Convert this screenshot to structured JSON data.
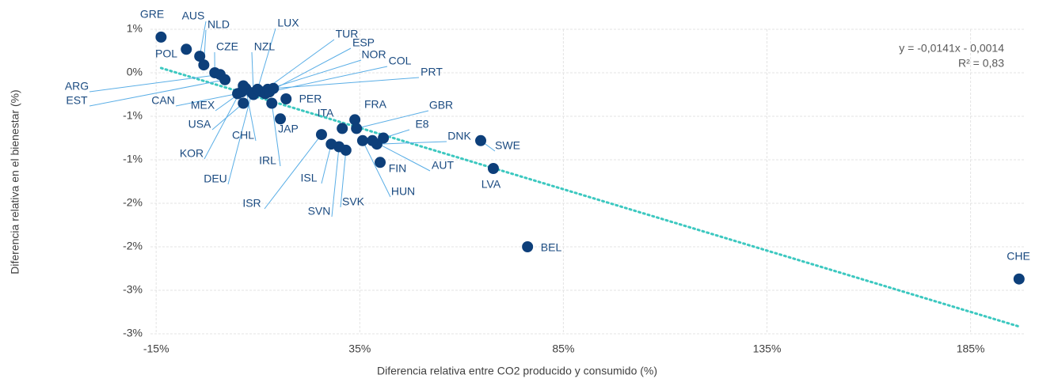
{
  "chart_data": {
    "type": "scatter",
    "x_label": "Diferencia relativa entre CO2 producido y consumido (%)",
    "y_label": "Diferencia relativa en el bienestar (%)",
    "color": "#0d3f7a",
    "point_labels": [
      "GRE",
      "POL",
      "AUS",
      "NLD",
      "CZE",
      "ARG",
      "EST",
      "CAN",
      "MEX",
      "USA",
      "CHL",
      "KOR",
      "DEU",
      "IRL",
      "JAP",
      "PER",
      "NZL",
      "LUX",
      "TUR",
      "ESP",
      "NOR",
      "COL",
      "PRT",
      "ITA",
      "FRA",
      "GBR",
      "E8",
      "DNK",
      "SWE",
      "LVA",
      "AUT",
      "FIN",
      "HUN",
      "SVK",
      "SVN",
      "ISL",
      "ISR",
      "BEL",
      "CHE"
    ],
    "x": [
      -13.8,
      -7.6,
      -4.3,
      -3.3,
      -0.6,
      0.7,
      1.9,
      5.0,
      6.0,
      6.4,
      7.0,
      6.4,
      8.5,
      13.4,
      15.5,
      16.9,
      8.9,
      9.9,
      11.0,
      11.8,
      12.4,
      12.8,
      13.8,
      30.7,
      33.8,
      34.2,
      40.8,
      39.2,
      64.7,
      67.8,
      38.1,
      40.0,
      35.7,
      31.6,
      29.9,
      28.0,
      25.6,
      76.2,
      196.9
    ],
    "y": [
      0.41,
      0.27,
      0.19,
      0.09,
      0.0,
      -0.02,
      -0.08,
      -0.24,
      -0.22,
      -0.35,
      -0.18,
      -0.15,
      -0.23,
      -0.35,
      -0.53,
      -0.3,
      -0.25,
      -0.19,
      -0.22,
      -0.24,
      -0.19,
      -0.22,
      -0.18,
      -0.64,
      -0.54,
      -0.64,
      -0.75,
      -0.82,
      -0.78,
      -1.1,
      -0.78,
      -1.03,
      -0.78,
      -0.89,
      -0.85,
      -0.82,
      -0.71,
      -2.0,
      -2.37
    ],
    "xlim": [
      -16.4,
      198.3
    ],
    "xticks": [
      {
        "value": -15,
        "label": "-15%"
      },
      {
        "value": 35,
        "label": "35%"
      },
      {
        "value": 85,
        "label": "85%"
      },
      {
        "value": 135,
        "label": "135%"
      },
      {
        "value": 185,
        "label": "185%"
      }
    ],
    "ylim": [
      -3,
      0.5
    ],
    "yticks": [
      {
        "value": 0.5,
        "label": "1%"
      },
      {
        "value": 0,
        "label": "0%"
      },
      {
        "value": -0.5,
        "label": "-1%"
      },
      {
        "value": -1,
        "label": "-1%"
      },
      {
        "value": -1.5,
        "label": "-2%"
      },
      {
        "value": -2,
        "label": "-2%"
      },
      {
        "value": -2.5,
        "label": "-3%"
      },
      {
        "value": -3,
        "label": "-3%"
      }
    ],
    "grid": true,
    "trendline": {
      "equation": "y = -0,0141x - 0,0014",
      "r2": "R² = 0,83",
      "slope": -0.0141,
      "intercept": -0.0014,
      "color": "#3cc8c0"
    }
  }
}
